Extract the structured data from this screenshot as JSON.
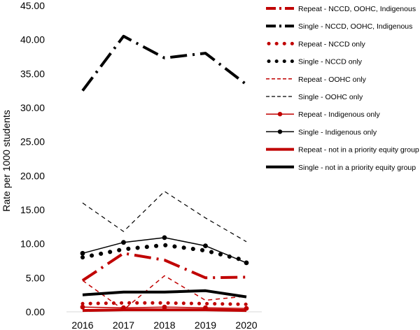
{
  "chart_data": {
    "type": "line",
    "title": "",
    "xlabel": "",
    "ylabel": "Rate per 1000 students",
    "categories": [
      "2016",
      "2017",
      "2018",
      "2019",
      "2020"
    ],
    "ylim": [
      0,
      45
    ],
    "yticks": [
      "0.00",
      "5.00",
      "10.00",
      "15.00",
      "20.00",
      "25.00",
      "30.00",
      "35.00",
      "40.00",
      "45.00"
    ],
    "grid": false,
    "legend_position": "right",
    "series": [
      {
        "name": "Repeat - NCCD, OOHC, Indigenous",
        "values": [
          4.6,
          8.6,
          7.6,
          5.0,
          5.1
        ],
        "color": "#c00000",
        "style": "dashdot",
        "width": 4,
        "marker": "none"
      },
      {
        "name": "Single - NCCD, OOHC, Indigenous",
        "values": [
          32.5,
          40.5,
          37.3,
          38.0,
          33.4
        ],
        "color": "#000000",
        "style": "dashdot",
        "width": 4,
        "marker": "none"
      },
      {
        "name": "Repeat - NCCD only",
        "values": [
          1.2,
          1.3,
          1.3,
          1.2,
          1.1
        ],
        "color": "#c00000",
        "style": "dotted",
        "width": 5,
        "marker": "none"
      },
      {
        "name": "Single - NCCD only",
        "values": [
          8.0,
          9.2,
          9.8,
          9.0,
          7.5
        ],
        "color": "#000000",
        "style": "dotted",
        "width": 6,
        "marker": "none"
      },
      {
        "name": "Repeat - OOHC only",
        "values": [
          4.6,
          0.3,
          5.3,
          1.7,
          2.3
        ],
        "color": "#c00000",
        "style": "dashed",
        "width": 1.5,
        "marker": "none"
      },
      {
        "name": "Single - OOHC only",
        "values": [
          16.0,
          11.8,
          17.7,
          13.8,
          10.3
        ],
        "color": "#000000",
        "style": "dashed",
        "width": 1.2,
        "marker": "none"
      },
      {
        "name": "Repeat - Indigenous only",
        "values": [
          0.7,
          0.6,
          0.7,
          0.6,
          0.5
        ],
        "color": "#c00000",
        "style": "solid",
        "width": 1.5,
        "marker": "circle"
      },
      {
        "name": "Single - Indigenous only",
        "values": [
          8.6,
          10.2,
          10.9,
          9.7,
          7.2
        ],
        "color": "#000000",
        "style": "solid",
        "width": 1.5,
        "marker": "circle"
      },
      {
        "name": "Repeat - not in a priority equity group",
        "values": [
          0.2,
          0.3,
          0.3,
          0.3,
          0.2
        ],
        "color": "#c00000",
        "style": "solid",
        "width": 4,
        "marker": "none"
      },
      {
        "name": "Single - not in a priority equity group",
        "values": [
          2.5,
          2.9,
          2.9,
          3.1,
          2.2
        ],
        "color": "#000000",
        "style": "solid",
        "width": 4,
        "marker": "none"
      }
    ]
  }
}
